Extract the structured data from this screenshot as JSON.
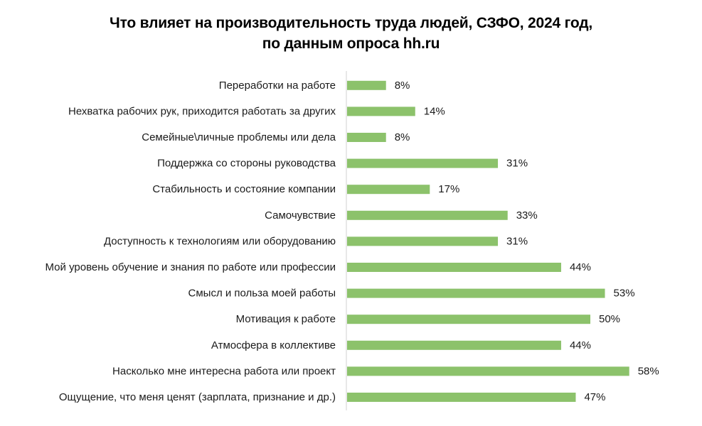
{
  "chart_data": {
    "type": "bar",
    "orientation": "horizontal",
    "title": "Что влияет на производительность труда людей, СЗФО, 2024 год,",
    "subtitle": "по данным опроса hh.ru",
    "categories": [
      "Переработки на работе",
      "Нехватка рабочих рук, приходится работать за других",
      "Семейные\\личные проблемы или дела",
      "Поддержка со стороны руководства",
      "Стабильность и состояние компании",
      "Самочувствие",
      "Доступность к технологиям или оборудованию",
      "Мой уровень обучение и знания по работе или профессии",
      "Смысл и польза моей работы",
      "Мотивация к работе",
      "Атмосфера в коллективе",
      "Насколько мне интересна работа или проект",
      "Ощущение, что меня ценят (зарплата, признание и др.)"
    ],
    "values": [
      8,
      14,
      8,
      31,
      17,
      33,
      31,
      44,
      53,
      50,
      44,
      58,
      47
    ],
    "data_labels": [
      "8%",
      "14%",
      "8%",
      "31%",
      "17%",
      "33%",
      "31%",
      "44%",
      "53%",
      "50%",
      "44%",
      "58%",
      "47%"
    ],
    "unit": "%",
    "xlim": [
      0,
      60
    ],
    "grid": false,
    "legend": "none",
    "bar_color": "#8cc26b",
    "axis_color": "#d0d0d0"
  }
}
